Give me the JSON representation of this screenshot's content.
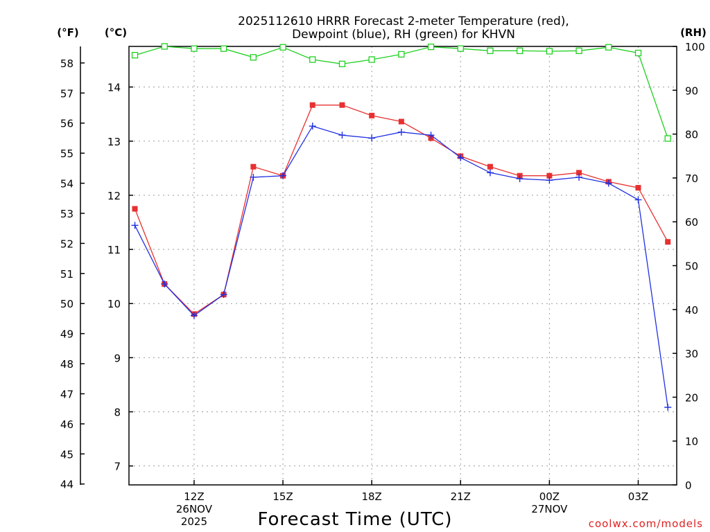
{
  "chart_data": {
    "type": "line",
    "title": [
      "2025112610 HRRR Forecast 2-meter Temperature (red),",
      "Dewpoint (blue), RH (green) for KHVN"
    ],
    "xlabel": "Forecast Time (UTC)",
    "credit": "coolwx.com/models",
    "units": {
      "fahrenheit": "(°F)",
      "celsius": "(°C)",
      "rh": "(RH)"
    },
    "x_hours": [
      10,
      11,
      12,
      13,
      14,
      15,
      16,
      17,
      18,
      19,
      20,
      21,
      22,
      23,
      24,
      25,
      26,
      27,
      28
    ],
    "x_range": [
      9.8,
      28.3
    ],
    "x_ticks": [
      {
        "hour": 12,
        "lines": [
          "12Z",
          "26NOV",
          "2025"
        ]
      },
      {
        "hour": 15,
        "lines": [
          "15Z"
        ]
      },
      {
        "hour": 18,
        "lines": [
          "18Z"
        ]
      },
      {
        "hour": 21,
        "lines": [
          "21Z"
        ]
      },
      {
        "hour": 24,
        "lines": [
          "00Z",
          "27NOV"
        ]
      },
      {
        "hour": 27,
        "lines": [
          "03Z"
        ]
      }
    ],
    "left_axis_f": {
      "range": [
        43.97,
        58.55
      ],
      "ticks": [
        44,
        45,
        46,
        47,
        48,
        49,
        50,
        51,
        52,
        53,
        54,
        55,
        56,
        57,
        58
      ]
    },
    "left_axis_c": {
      "range": [
        6.65,
        14.75
      ],
      "ticks": [
        7,
        8,
        9,
        10,
        11,
        12,
        13,
        14
      ]
    },
    "right_axis_rh": {
      "range": [
        0,
        100
      ],
      "ticks": [
        0,
        10,
        20,
        30,
        40,
        50,
        60,
        70,
        80,
        90,
        100
      ]
    },
    "series": [
      {
        "name": "Temperature",
        "color": "#e83030",
        "units": "F",
        "marker": "filled-square",
        "values": [
          53.15,
          50.65,
          49.65,
          50.3,
          54.55,
          54.25,
          56.6,
          56.6,
          56.25,
          56.05,
          55.5,
          54.9,
          54.55,
          54.25,
          54.25,
          54.35,
          54.05,
          53.85,
          52.05
        ]
      },
      {
        "name": "Dewpoint",
        "color": "#2030e0",
        "units": "F",
        "marker": "plus",
        "values": [
          52.6,
          50.65,
          49.6,
          50.3,
          54.2,
          54.25,
          55.9,
          55.6,
          55.5,
          55.7,
          55.6,
          54.85,
          54.35,
          54.15,
          54.1,
          54.2,
          54.0,
          53.45,
          46.55
        ]
      },
      {
        "name": "RH",
        "color": "#20d020",
        "units": "%",
        "marker": "open-square",
        "values": [
          98,
          100,
          99.5,
          99.5,
          97.5,
          99.8,
          97,
          96,
          97,
          98.2,
          99.9,
          99.5,
          99,
          99,
          98.9,
          99,
          99.8,
          98.5,
          79
        ]
      }
    ]
  }
}
